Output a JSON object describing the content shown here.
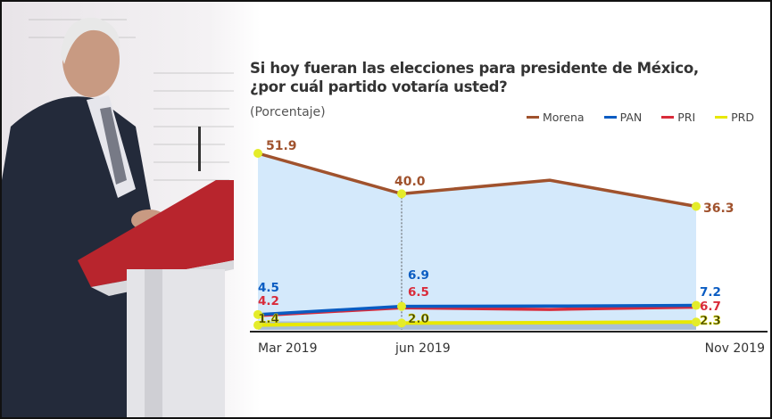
{
  "chart_data": {
    "type": "line",
    "title": "Si hoy fueran las elecciones para presidente de México,",
    "title_line2": "¿por cuál partido votaría usted?",
    "subtitle": "(Porcentaje)",
    "xlabel": "",
    "ylabel": "",
    "categories": [
      "Mar 2019",
      "jun 2019",
      "",
      "Nov 2019"
    ],
    "ylim": [
      0,
      55
    ],
    "grid": false,
    "legend_position": "top-right",
    "series": [
      {
        "name": "Morena",
        "color": "#a0522d",
        "values": [
          51.9,
          40.0,
          44.0,
          36.3
        ],
        "labels": [
          "51.9",
          "40.0",
          "",
          "36.3"
        ]
      },
      {
        "name": "PAN",
        "color": "#0a5cc2",
        "values": [
          4.5,
          6.9,
          7.0,
          7.2
        ],
        "labels": [
          "4.5",
          "6.9",
          "",
          "7.2"
        ]
      },
      {
        "name": "PRI",
        "color": "#d92b3a",
        "values": [
          4.2,
          6.5,
          6.0,
          6.7
        ],
        "labels": [
          "4.2",
          "6.5",
          "",
          "6.7"
        ]
      },
      {
        "name": "PRD",
        "color": "#e8e800",
        "values": [
          1.4,
          2.0,
          2.1,
          2.3
        ],
        "labels": [
          "1.4",
          "2.0",
          "",
          "2.3"
        ]
      }
    ]
  },
  "colors": {
    "area_fill": "#d4e9fb",
    "marker": "#e4ec2a",
    "axis": "#222"
  }
}
